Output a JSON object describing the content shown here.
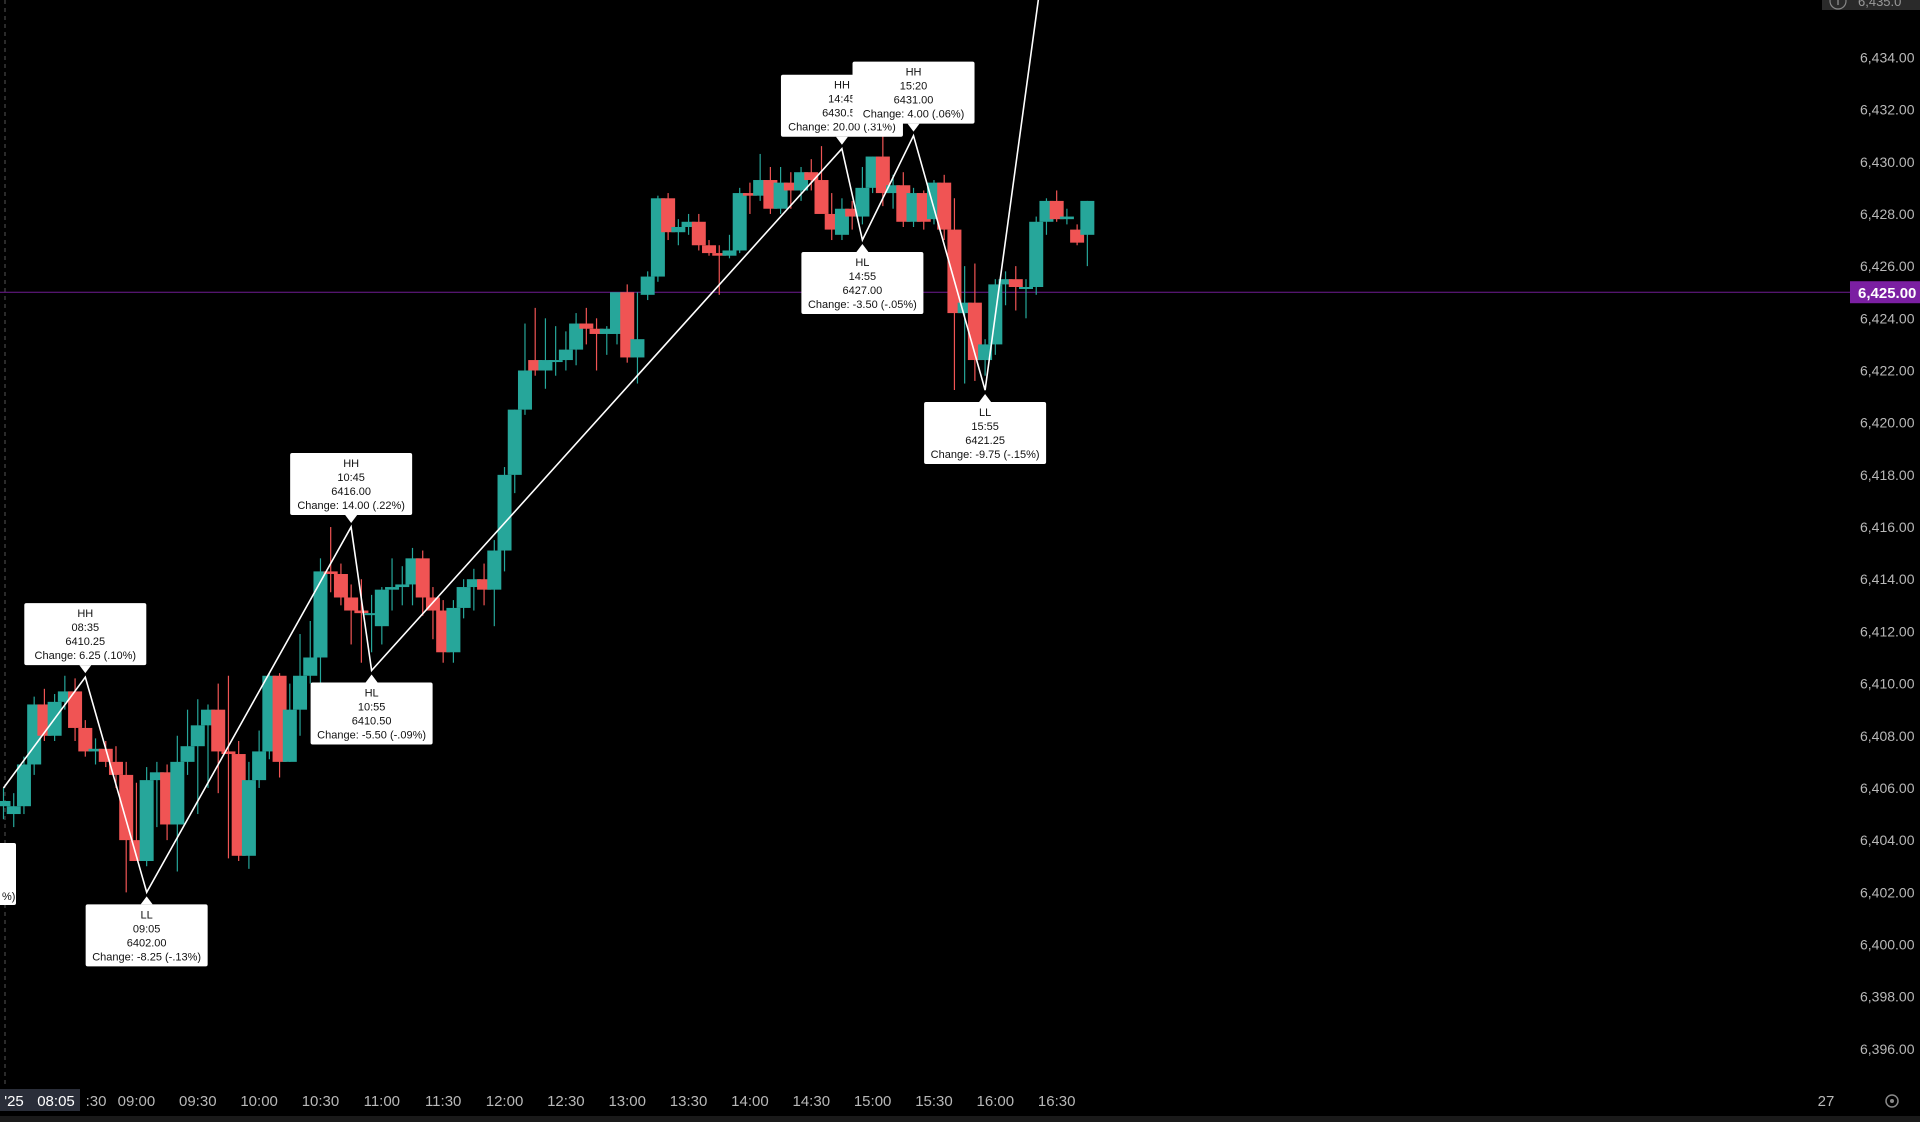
{
  "chart_data": {
    "type": "candlestick",
    "x_axis_tick_labels": [
      "'25",
      "08:05",
      ":30",
      "09:00",
      "09:30",
      "10:00",
      "10:30",
      "11:00",
      "11:30",
      "12:00",
      "12:30",
      "13:00",
      "13:30",
      "14:00",
      "14:30",
      "15:00",
      "15:30",
      "16:00",
      "16:30",
      "27"
    ],
    "y_axis_tick_labels": [
      "6,434.00",
      "6,432.00",
      "6,430.00",
      "6,428.00",
      "6,426.00",
      "6,424.00",
      "6,422.00",
      "6,420.00",
      "6,418.00",
      "6,416.00",
      "6,414.00",
      "6,412.00",
      "6,410.00",
      "6,408.00",
      "6,406.00",
      "6,404.00",
      "6,402.00",
      "6,400.00",
      "6,398.00",
      "6,396.00"
    ],
    "y_ticks": [
      6434,
      6432,
      6430,
      6428,
      6426,
      6424,
      6422,
      6420,
      6418,
      6416,
      6414,
      6412,
      6410,
      6408,
      6406,
      6404,
      6402,
      6400,
      6398,
      6396
    ],
    "ylim": [
      6394.5,
      6436.2
    ],
    "x_time_range_min": [
      475,
      1010
    ],
    "bar_interval_min": 5,
    "current_price": 6425.0,
    "current_price_label": "6,425.00",
    "colors": {
      "background": "#000000",
      "up": "#26a69a",
      "down": "#f05454",
      "axis_text": "#b8b8b8",
      "zigzag": "#ffffff",
      "price_line": "#7b1fa2",
      "price_badge": "#7b1fa2"
    },
    "candles": [
      {
        "t": 475,
        "o": 6405.3,
        "h": 6406.0,
        "l": 6404.8,
        "c": 6405.5
      },
      {
        "t": 480,
        "o": 6405.0,
        "h": 6405.8,
        "l": 6404.5,
        "c": 6405.3
      },
      {
        "t": 485,
        "o": 6405.3,
        "h": 6407.2,
        "l": 6405.0,
        "c": 6406.9
      },
      {
        "t": 490,
        "o": 6406.9,
        "h": 6409.5,
        "l": 6406.5,
        "c": 6409.2
      },
      {
        "t": 495,
        "o": 6409.2,
        "h": 6409.8,
        "l": 6407.8,
        "c": 6408.0
      },
      {
        "t": 500,
        "o": 6408.0,
        "h": 6409.6,
        "l": 6407.8,
        "c": 6409.3
      },
      {
        "t": 505,
        "o": 6409.3,
        "h": 6410.3,
        "l": 6409.0,
        "c": 6409.7
      },
      {
        "t": 510,
        "o": 6409.7,
        "h": 6410.2,
        "l": 6407.8,
        "c": 6408.3
      },
      {
        "t": 515,
        "o": 6408.3,
        "h": 6408.6,
        "l": 6407.2,
        "c": 6407.4
      },
      {
        "t": 520,
        "o": 6407.4,
        "h": 6407.9,
        "l": 6406.9,
        "c": 6407.5
      },
      {
        "t": 525,
        "o": 6407.5,
        "h": 6407.8,
        "l": 6406.8,
        "c": 6407.0
      },
      {
        "t": 530,
        "o": 6407.0,
        "h": 6407.6,
        "l": 6406.0,
        "c": 6406.5
      },
      {
        "t": 535,
        "o": 6406.5,
        "h": 6407.0,
        "l": 6402.0,
        "c": 6404.0
      },
      {
        "t": 540,
        "o": 6404.0,
        "h": 6406.2,
        "l": 6403.5,
        "c": 6403.2
      },
      {
        "t": 545,
        "o": 6403.2,
        "h": 6406.8,
        "l": 6403.0,
        "c": 6406.3
      },
      {
        "t": 550,
        "o": 6406.3,
        "h": 6407.0,
        "l": 6404.5,
        "c": 6406.6
      },
      {
        "t": 555,
        "o": 6406.6,
        "h": 6406.9,
        "l": 6404.0,
        "c": 6404.6
      },
      {
        "t": 560,
        "o": 6404.6,
        "h": 6408.0,
        "l": 6402.8,
        "c": 6407.0
      },
      {
        "t": 565,
        "o": 6407.0,
        "h": 6409.0,
        "l": 6406.5,
        "c": 6407.6
      },
      {
        "t": 570,
        "o": 6407.6,
        "h": 6409.4,
        "l": 6405.0,
        "c": 6408.4
      },
      {
        "t": 575,
        "o": 6408.4,
        "h": 6409.2,
        "l": 6406.0,
        "c": 6409.0
      },
      {
        "t": 580,
        "o": 6409.0,
        "h": 6410.0,
        "l": 6405.8,
        "c": 6407.4
      },
      {
        "t": 585,
        "o": 6407.4,
        "h": 6410.3,
        "l": 6403.3,
        "c": 6407.3
      },
      {
        "t": 590,
        "o": 6407.3,
        "h": 6407.8,
        "l": 6403.2,
        "c": 6403.4
      },
      {
        "t": 595,
        "o": 6403.4,
        "h": 6407.0,
        "l": 6402.9,
        "c": 6406.3
      },
      {
        "t": 600,
        "o": 6406.3,
        "h": 6408.2,
        "l": 6406.0,
        "c": 6407.4
      },
      {
        "t": 605,
        "o": 6407.4,
        "h": 6410.4,
        "l": 6407.1,
        "c": 6410.3
      },
      {
        "t": 610,
        "o": 6410.3,
        "h": 6410.4,
        "l": 6406.4,
        "c": 6407.0
      },
      {
        "t": 615,
        "o": 6407.0,
        "h": 6410.0,
        "l": 6407.0,
        "c": 6409.0
      },
      {
        "t": 620,
        "o": 6409.0,
        "h": 6411.9,
        "l": 6408.0,
        "c": 6410.3
      },
      {
        "t": 625,
        "o": 6410.3,
        "h": 6412.4,
        "l": 6410.0,
        "c": 6411.0
      },
      {
        "t": 630,
        "o": 6411.0,
        "h": 6414.8,
        "l": 6410.0,
        "c": 6414.3
      },
      {
        "t": 635,
        "o": 6414.3,
        "h": 6416.0,
        "l": 6413.5,
        "c": 6414.2
      },
      {
        "t": 640,
        "o": 6414.2,
        "h": 6414.6,
        "l": 6413.0,
        "c": 6413.3
      },
      {
        "t": 645,
        "o": 6413.3,
        "h": 6413.8,
        "l": 6411.5,
        "c": 6412.8
      },
      {
        "t": 650,
        "o": 6412.8,
        "h": 6414.0,
        "l": 6410.8,
        "c": 6412.7
      },
      {
        "t": 655,
        "o": 6412.7,
        "h": 6413.4,
        "l": 6411.2,
        "c": 6412.7
      },
      {
        "t": 660,
        "o": 6412.2,
        "h": 6413.7,
        "l": 6411.5,
        "c": 6413.6
      },
      {
        "t": 665,
        "o": 6413.6,
        "h": 6414.8,
        "l": 6412.8,
        "c": 6413.7
      },
      {
        "t": 670,
        "o": 6413.7,
        "h": 6414.5,
        "l": 6413.0,
        "c": 6413.8
      },
      {
        "t": 675,
        "o": 6413.8,
        "h": 6415.2,
        "l": 6413.0,
        "c": 6414.8
      },
      {
        "t": 680,
        "o": 6414.8,
        "h": 6415.1,
        "l": 6412.6,
        "c": 6413.3
      },
      {
        "t": 685,
        "o": 6413.3,
        "h": 6413.7,
        "l": 6411.7,
        "c": 6412.8
      },
      {
        "t": 690,
        "o": 6412.8,
        "h": 6413.2,
        "l": 6410.8,
        "c": 6411.2
      },
      {
        "t": 695,
        "o": 6411.2,
        "h": 6413.2,
        "l": 6410.8,
        "c": 6412.9
      },
      {
        "t": 700,
        "o": 6412.9,
        "h": 6414.0,
        "l": 6412.5,
        "c": 6413.7
      },
      {
        "t": 705,
        "o": 6413.7,
        "h": 6414.4,
        "l": 6412.8,
        "c": 6414.0
      },
      {
        "t": 710,
        "o": 6414.0,
        "h": 6414.6,
        "l": 6413.0,
        "c": 6413.6
      },
      {
        "t": 715,
        "o": 6413.6,
        "h": 6415.5,
        "l": 6412.2,
        "c": 6415.1
      },
      {
        "t": 720,
        "o": 6415.1,
        "h": 6418.3,
        "l": 6414.3,
        "c": 6418.0
      },
      {
        "t": 725,
        "o": 6418.0,
        "h": 6420.5,
        "l": 6417.3,
        "c": 6420.5
      },
      {
        "t": 730,
        "o": 6420.5,
        "h": 6423.8,
        "l": 6420.3,
        "c": 6422.0
      },
      {
        "t": 735,
        "o": 6422.4,
        "h": 6424.4,
        "l": 6421.8,
        "c": 6422.0
      },
      {
        "t": 740,
        "o": 6422.0,
        "h": 6424.0,
        "l": 6421.3,
        "c": 6422.4
      },
      {
        "t": 745,
        "o": 6422.4,
        "h": 6423.7,
        "l": 6421.8,
        "c": 6422.4
      },
      {
        "t": 750,
        "o": 6422.4,
        "h": 6423.5,
        "l": 6422.0,
        "c": 6422.8
      },
      {
        "t": 755,
        "o": 6422.8,
        "h": 6424.2,
        "l": 6422.2,
        "c": 6423.8
      },
      {
        "t": 760,
        "o": 6423.8,
        "h": 6424.4,
        "l": 6423.0,
        "c": 6423.6
      },
      {
        "t": 765,
        "o": 6423.6,
        "h": 6424.0,
        "l": 6422.0,
        "c": 6423.4
      },
      {
        "t": 770,
        "o": 6423.4,
        "h": 6423.7,
        "l": 6422.6,
        "c": 6423.6
      },
      {
        "t": 775,
        "o": 6423.4,
        "h": 6424.6,
        "l": 6423.0,
        "c": 6425.0
      },
      {
        "t": 780,
        "o": 6425.0,
        "h": 6425.3,
        "l": 6422.3,
        "c": 6422.5
      },
      {
        "t": 785,
        "o": 6422.5,
        "h": 6425.0,
        "l": 6421.5,
        "c": 6423.2
      },
      {
        "t": 790,
        "o": 6424.9,
        "h": 6425.8,
        "l": 6424.7,
        "c": 6425.6
      },
      {
        "t": 795,
        "o": 6425.6,
        "h": 6428.7,
        "l": 6425.4,
        "c": 6428.6
      },
      {
        "t": 800,
        "o": 6428.6,
        "h": 6428.8,
        "l": 6427.0,
        "c": 6427.3
      },
      {
        "t": 805,
        "o": 6427.3,
        "h": 6427.8,
        "l": 6426.8,
        "c": 6427.5
      },
      {
        "t": 810,
        "o": 6427.5,
        "h": 6428.0,
        "l": 6427.2,
        "c": 6427.7
      },
      {
        "t": 815,
        "o": 6427.7,
        "h": 6428.0,
        "l": 6426.6,
        "c": 6426.8
      },
      {
        "t": 820,
        "o": 6426.8,
        "h": 6427.0,
        "l": 6426.4,
        "c": 6426.5
      },
      {
        "t": 825,
        "o": 6426.5,
        "h": 6426.8,
        "l": 6424.9,
        "c": 6426.4
      },
      {
        "t": 830,
        "o": 6426.4,
        "h": 6427.2,
        "l": 6426.3,
        "c": 6426.6
      },
      {
        "t": 835,
        "o": 6426.6,
        "h": 6429.0,
        "l": 6426.5,
        "c": 6428.8
      },
      {
        "t": 840,
        "o": 6428.8,
        "h": 6429.2,
        "l": 6428.0,
        "c": 6428.7
      },
      {
        "t": 845,
        "o": 6428.7,
        "h": 6430.3,
        "l": 6428.5,
        "c": 6429.3
      },
      {
        "t": 850,
        "o": 6429.3,
        "h": 6429.8,
        "l": 6428.0,
        "c": 6428.2
      },
      {
        "t": 855,
        "o": 6428.2,
        "h": 6429.8,
        "l": 6428.0,
        "c": 6429.2
      },
      {
        "t": 860,
        "o": 6429.2,
        "h": 6429.6,
        "l": 6428.2,
        "c": 6428.9
      },
      {
        "t": 865,
        "o": 6428.9,
        "h": 6429.8,
        "l": 6428.5,
        "c": 6429.6
      },
      {
        "t": 870,
        "o": 6429.6,
        "h": 6430.1,
        "l": 6428.9,
        "c": 6429.3
      },
      {
        "t": 875,
        "o": 6429.3,
        "h": 6430.6,
        "l": 6428.1,
        "c": 6428.0
      },
      {
        "t": 880,
        "o": 6428.0,
        "h": 6428.8,
        "l": 6427.0,
        "c": 6427.4
      },
      {
        "t": 885,
        "o": 6427.2,
        "h": 6428.6,
        "l": 6427.0,
        "c": 6428.2
      },
      {
        "t": 890,
        "o": 6428.2,
        "h": 6428.5,
        "l": 6427.4,
        "c": 6427.9
      },
      {
        "t": 895,
        "o": 6427.9,
        "h": 6429.8,
        "l": 6427.6,
        "c": 6429.0
      },
      {
        "t": 900,
        "o": 6429.0,
        "h": 6430.2,
        "l": 6428.8,
        "c": 6430.2
      },
      {
        "t": 905,
        "o": 6430.2,
        "h": 6431.0,
        "l": 6428.3,
        "c": 6428.8
      },
      {
        "t": 910,
        "o": 6428.8,
        "h": 6429.5,
        "l": 6428.2,
        "c": 6429.1
      },
      {
        "t": 915,
        "o": 6429.1,
        "h": 6429.6,
        "l": 6427.5,
        "c": 6427.7
      },
      {
        "t": 920,
        "o": 6427.7,
        "h": 6429.0,
        "l": 6427.5,
        "c": 6428.8
      },
      {
        "t": 925,
        "o": 6428.8,
        "h": 6428.9,
        "l": 6427.4,
        "c": 6427.7
      },
      {
        "t": 930,
        "o": 6427.8,
        "h": 6429.3,
        "l": 6427.6,
        "c": 6429.2
      },
      {
        "t": 935,
        "o": 6429.2,
        "h": 6429.5,
        "l": 6427.0,
        "c": 6427.4
      },
      {
        "t": 940,
        "o": 6427.4,
        "h": 6428.6,
        "l": 6421.25,
        "c": 6424.2
      },
      {
        "t": 945,
        "o": 6424.2,
        "h": 6426.0,
        "l": 6421.5,
        "c": 6424.6
      },
      {
        "t": 950,
        "o": 6424.6,
        "h": 6426.1,
        "l": 6421.6,
        "c": 6422.4
      },
      {
        "t": 955,
        "o": 6422.4,
        "h": 6423.2,
        "l": 6421.8,
        "c": 6423.0
      },
      {
        "t": 960,
        "o": 6423.0,
        "h": 6425.5,
        "l": 6422.6,
        "c": 6425.3
      },
      {
        "t": 965,
        "o": 6425.3,
        "h": 6425.8,
        "l": 6424.5,
        "c": 6425.5
      },
      {
        "t": 970,
        "o": 6425.5,
        "h": 6426.0,
        "l": 6424.3,
        "c": 6425.2
      },
      {
        "t": 975,
        "o": 6425.2,
        "h": 6425.5,
        "l": 6424.0,
        "c": 6425.2
      },
      {
        "t": 980,
        "o": 6425.2,
        "h": 6427.9,
        "l": 6424.9,
        "c": 6427.7
      },
      {
        "t": 985,
        "o": 6427.7,
        "h": 6428.6,
        "l": 6427.2,
        "c": 6428.5
      },
      {
        "t": 990,
        "o": 6428.5,
        "h": 6428.9,
        "l": 6427.7,
        "c": 6427.8
      },
      {
        "t": 995,
        "o": 6427.8,
        "h": 6428.2,
        "l": 6427.6,
        "c": 6427.9
      },
      {
        "t": 1000,
        "o": 6427.4,
        "h": 6427.6,
        "l": 6426.8,
        "c": 6426.9
      },
      {
        "t": 1005,
        "o": 6427.2,
        "h": 6428.5,
        "l": 6426.0,
        "c": 6428.5
      }
    ],
    "zigzag": [
      {
        "t": 475,
        "p": 6406.0
      },
      {
        "t": 515,
        "p": 6410.25
      },
      {
        "t": 545,
        "p": 6402.0
      },
      {
        "t": 645,
        "p": 6416.0
      },
      {
        "t": 655,
        "p": 6410.5
      },
      {
        "t": 885,
        "p": 6430.5
      },
      {
        "t": 895,
        "p": 6427.0
      },
      {
        "t": 920,
        "p": 6431.0
      },
      {
        "t": 955,
        "p": 6421.25
      },
      {
        "t": 985,
        "p": 6438.5
      }
    ],
    "pivots": [
      {
        "kind": "HH",
        "time": "08:35",
        "price": "6410.25",
        "change": "Change: 6.25 (.10%)",
        "t": 515,
        "p": 6410.25,
        "pos": "above"
      },
      {
        "kind": "LL",
        "time": "09:05",
        "price": "6402.00",
        "change": "Change: -8.25 (-.13%)",
        "t": 545,
        "p": 6402.0,
        "pos": "below"
      },
      {
        "kind": "HH",
        "time": "10:45",
        "price": "6416.00",
        "change": "Change: 14.00 (.22%)",
        "t": 645,
        "p": 6416.0,
        "pos": "above"
      },
      {
        "kind": "HL",
        "time": "10:55",
        "price": "6410.50",
        "change": "Change: -5.50 (-.09%)",
        "t": 655,
        "p": 6410.5,
        "pos": "below"
      },
      {
        "kind": "HH",
        "time": "14:45",
        "price": "6430.50",
        "change": "Change: 20.00 (.31%)",
        "t": 885,
        "p": 6430.5,
        "pos": "above"
      },
      {
        "kind": "HL",
        "time": "14:55",
        "price": "6427.00",
        "change": "Change: -3.50 (-.05%)",
        "t": 895,
        "p": 6427.0,
        "pos": "below"
      },
      {
        "kind": "HH",
        "time": "15:20",
        "price": "6431.00",
        "change": "Change: 4.00 (.06%)",
        "t": 920,
        "p": 6431.0,
        "pos": "above"
      },
      {
        "kind": "LL",
        "time": "15:55",
        "price": "6421.25",
        "change": "Change: -9.75 (-.15%)",
        "t": 955,
        "p": 6421.25,
        "pos": "below"
      }
    ],
    "partial_left_label": "%)",
    "top_right_partial_label": "6,435.0",
    "top_right_icon": "info-icon",
    "bottom_right_icon": "settings-icon"
  }
}
